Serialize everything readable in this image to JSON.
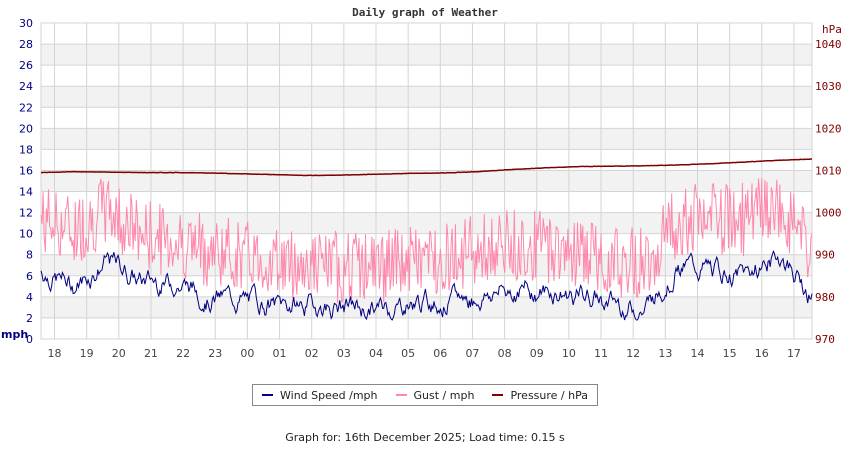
{
  "chart_data": {
    "type": "line",
    "title": "Daily graph of Weather",
    "xlabel": "",
    "ylabel_left": "mph",
    "ylabel_right": "hPa",
    "ylim_left": [
      0,
      30
    ],
    "ylim_right": [
      970,
      1040
    ],
    "y_ticks_left": [
      0,
      2,
      4,
      6,
      8,
      10,
      12,
      14,
      16,
      18,
      20,
      22,
      24,
      26,
      28,
      30
    ],
    "y_ticks_right": [
      970,
      980,
      990,
      1000,
      1010,
      1020,
      1030,
      1040
    ],
    "categories": [
      "18",
      "19",
      "20",
      "21",
      "22",
      "23",
      "00",
      "01",
      "02",
      "03",
      "04",
      "05",
      "06",
      "07",
      "08",
      "09",
      "10",
      "11",
      "12",
      "13",
      "14",
      "15",
      "16",
      "17"
    ],
    "grid": true,
    "legend_position": "bottom",
    "series": [
      {
        "name": "Wind Speed /mph",
        "color": "#000080",
        "axis": "left",
        "values": [
          6.5,
          5.0,
          7.5,
          5.5,
          5.5,
          4.0,
          3.8,
          3.2,
          3.2,
          3.0,
          2.8,
          3.5,
          3.5,
          4.0,
          4.8,
          4.5,
          4.2,
          3.5,
          2.8,
          7.0,
          6.5,
          6.0,
          8.0,
          4.2
        ]
      },
      {
        "name": "Gust / mph",
        "color": "#ff88aa",
        "axis": "left",
        "values": [
          11.0,
          10.0,
          12.0,
          9.5,
          9.0,
          8.0,
          7.5,
          7.0,
          6.5,
          6.5,
          6.5,
          7.0,
          7.5,
          8.0,
          8.5,
          8.5,
          8.0,
          7.0,
          7.0,
          11.0,
          11.0,
          11.0,
          12.0,
          8.0
        ]
      },
      {
        "name": "Pressure / hPa",
        "color": "#800000",
        "axis": "right",
        "values": [
          1009.5,
          1009.7,
          1009.6,
          1009.5,
          1009.5,
          1009.4,
          1009.2,
          1009.0,
          1008.8,
          1008.9,
          1009.1,
          1009.3,
          1009.4,
          1009.7,
          1010.2,
          1010.6,
          1010.9,
          1011.0,
          1011.1,
          1011.3,
          1011.6,
          1012.0,
          1012.4,
          1012.7
        ]
      }
    ]
  },
  "header": {
    "title": "Daily graph of Weather"
  },
  "axes": {
    "left_label": "mph",
    "right_label": "hPa",
    "left_ticks": [
      "0",
      "2",
      "4",
      "6",
      "8",
      "10",
      "12",
      "14",
      "16",
      "18",
      "20",
      "22",
      "24",
      "26",
      "28",
      "30"
    ],
    "right_ticks": [
      "970",
      "980",
      "990",
      "1000",
      "1010",
      "1020",
      "1030",
      "1040"
    ],
    "x_ticks": [
      "18",
      "19",
      "20",
      "21",
      "22",
      "23",
      "00",
      "01",
      "02",
      "03",
      "04",
      "05",
      "06",
      "07",
      "08",
      "09",
      "10",
      "11",
      "12",
      "13",
      "14",
      "15",
      "16",
      "17"
    ]
  },
  "legend": {
    "items": [
      {
        "label": "Wind Speed /mph",
        "color": "#000080"
      },
      {
        "label": "Gust / mph",
        "color": "#ff88aa"
      },
      {
        "label": "Pressure / hPa",
        "color": "#800000"
      }
    ]
  },
  "footer": {
    "text": "Graph for: 16th December 2025; Load time: 0.15 s"
  },
  "colors": {
    "left_axis": "#000080",
    "right_axis": "#800000",
    "grid": "#d4d4d4",
    "band": "#f2f2f2"
  }
}
